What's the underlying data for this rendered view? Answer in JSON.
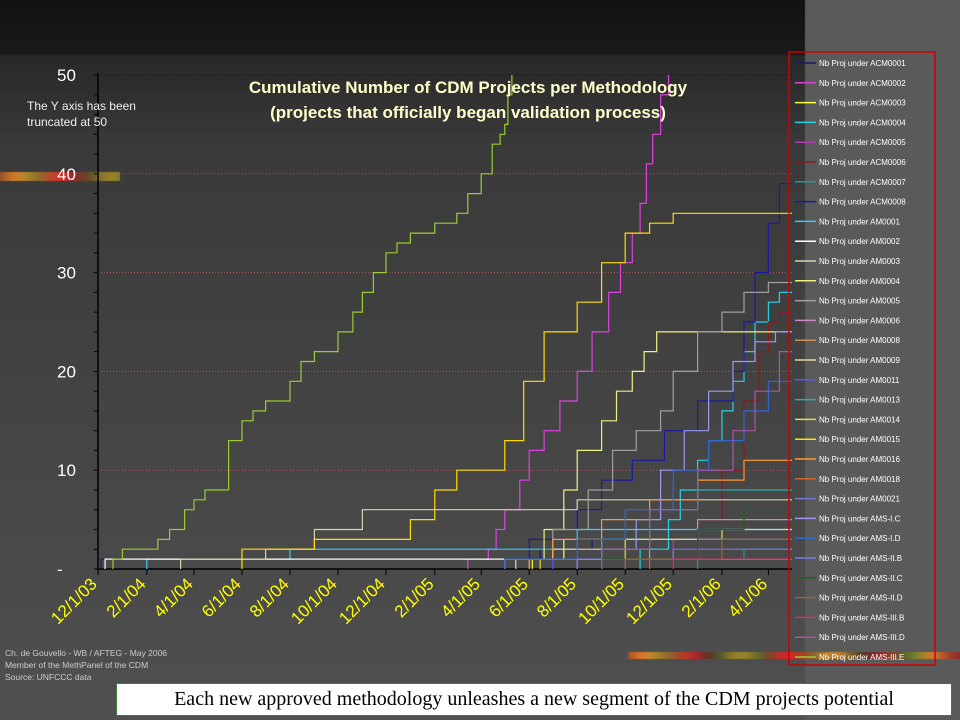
{
  "chart_data": {
    "type": "line",
    "title": "Cumulative Number of CDM Projects per Methodology",
    "subtitle": "(projects that officially began validation process)",
    "annotation": "The Y axis has been truncated at  50",
    "ylim": [
      0,
      50
    ],
    "y_ticks": [
      "-",
      "10",
      "20",
      "30",
      "40",
      "50"
    ],
    "x_ticks": [
      "12/1/03",
      "2/1/04",
      "4/1/04",
      "6/1/04",
      "8/1/04",
      "10/1/04",
      "12/1/04",
      "2/1/05",
      "4/1/05",
      "6/1/05",
      "8/1/05",
      "10/1/05",
      "12/1/05",
      "2/1/06",
      "4/1/06"
    ],
    "x_range": [
      "2003-12-01",
      "2006-05-01"
    ],
    "legend_position": "right",
    "series": [
      {
        "name": "Nb Proj under ACM0001",
        "color": "#1a1a6e",
        "steps": [
          [
            "2003-12-05",
            1
          ],
          [
            "2005-05-15",
            1
          ],
          [
            "2005-06-15",
            2
          ],
          [
            "2005-08-20",
            3
          ],
          [
            "2006-05-01",
            3
          ]
        ]
      },
      {
        "name": "Nb Proj under ACM0002",
        "color": "#e040e0",
        "steps": [
          [
            "2005-03-15",
            1
          ],
          [
            "2005-04-10",
            2
          ],
          [
            "2005-04-20",
            4
          ],
          [
            "2005-05-01",
            6
          ],
          [
            "2005-05-20",
            9
          ],
          [
            "2005-06-01",
            12
          ],
          [
            "2005-06-20",
            14
          ],
          [
            "2005-07-10",
            17
          ],
          [
            "2005-08-01",
            20
          ],
          [
            "2005-08-20",
            24
          ],
          [
            "2005-09-10",
            28
          ],
          [
            "2005-09-25",
            31
          ],
          [
            "2005-10-10",
            34
          ],
          [
            "2005-10-20",
            37
          ],
          [
            "2005-10-28",
            41
          ],
          [
            "2005-11-05",
            44
          ],
          [
            "2005-11-15",
            48
          ],
          [
            "2005-11-25",
            50
          ]
        ]
      },
      {
        "name": "Nb Proj under ACM0003",
        "color": "#ffff33",
        "steps": [
          [
            "2005-06-05",
            1
          ],
          [
            "2005-07-15",
            3
          ],
          [
            "2006-05-01",
            3
          ]
        ]
      },
      {
        "name": "Nb Proj under ACM0004",
        "color": "#22d3e6",
        "steps": [
          [
            "2005-10-20",
            2
          ],
          [
            "2005-11-25",
            5
          ],
          [
            "2005-12-10",
            8
          ],
          [
            "2006-01-01",
            11
          ],
          [
            "2006-01-15",
            13
          ],
          [
            "2006-02-01",
            16
          ],
          [
            "2006-02-15",
            19
          ],
          [
            "2006-03-01",
            22
          ],
          [
            "2006-03-15",
            25
          ],
          [
            "2006-04-01",
            27
          ],
          [
            "2006-04-15",
            28
          ],
          [
            "2006-05-01",
            28
          ]
        ]
      },
      {
        "name": "Nb Proj under ACM0005",
        "color": "#b23ab2",
        "steps": [
          [
            "2005-09-01",
            1
          ],
          [
            "2005-12-01",
            3
          ],
          [
            "2006-05-01",
            3
          ]
        ]
      },
      {
        "name": "Nb Proj under ACM0006",
        "color": "#8b1a1a",
        "steps": [
          [
            "2005-11-01",
            1
          ],
          [
            "2006-01-01",
            5
          ],
          [
            "2006-02-01",
            10
          ],
          [
            "2006-03-01",
            17
          ],
          [
            "2006-03-20",
            22
          ],
          [
            "2006-04-01",
            25
          ],
          [
            "2006-04-15",
            26
          ],
          [
            "2006-05-01",
            26
          ]
        ]
      },
      {
        "name": "Nb Proj under ACM0007",
        "color": "#1a9a9a",
        "steps": [
          [
            "2006-01-01",
            1
          ],
          [
            "2006-03-01",
            2
          ],
          [
            "2006-05-01",
            2
          ]
        ]
      },
      {
        "name": "Nb Proj under ACM0008",
        "color": "#1a1aa0",
        "steps": [
          [
            "2005-05-01",
            1
          ],
          [
            "2005-06-01",
            3
          ],
          [
            "2005-08-01",
            6
          ],
          [
            "2005-09-01",
            9
          ],
          [
            "2005-10-10",
            11
          ],
          [
            "2005-11-20",
            14
          ],
          [
            "2006-01-01",
            17
          ],
          [
            "2006-02-15",
            20
          ],
          [
            "2006-03-01",
            25
          ],
          [
            "2006-03-15",
            30
          ],
          [
            "2006-04-01",
            35
          ],
          [
            "2006-04-15",
            39
          ],
          [
            "2006-05-01",
            39
          ]
        ]
      },
      {
        "name": "Nb Proj under AM0001",
        "color": "#33ccff",
        "steps": [
          [
            "2004-02-01",
            1
          ],
          [
            "2004-08-01",
            2
          ],
          [
            "2005-08-01",
            4
          ],
          [
            "2006-05-01",
            4
          ]
        ]
      },
      {
        "name": "Nb Proj under AM0002",
        "color": "#ffffff",
        "steps": [
          [
            "2003-12-10",
            1
          ],
          [
            "2006-05-01",
            1
          ]
        ]
      },
      {
        "name": "Nb Proj under AM0003",
        "color": "#d4d4b0",
        "steps": [
          [
            "2004-03-15",
            1
          ],
          [
            "2004-07-01",
            2
          ],
          [
            "2004-09-01",
            4
          ],
          [
            "2004-11-01",
            6
          ],
          [
            "2005-05-01",
            6
          ],
          [
            "2005-08-01",
            7
          ],
          [
            "2006-05-01",
            7
          ]
        ]
      },
      {
        "name": "Nb Proj under AM0004",
        "color": "#f0f080",
        "steps": [
          [
            "2005-05-01",
            1
          ],
          [
            "2005-06-20",
            4
          ],
          [
            "2005-07-15",
            8
          ],
          [
            "2005-08-01",
            12
          ],
          [
            "2005-09-01",
            15
          ],
          [
            "2005-09-20",
            18
          ],
          [
            "2005-10-10",
            20
          ],
          [
            "2005-10-25",
            22
          ],
          [
            "2005-11-10",
            24
          ],
          [
            "2006-05-01",
            24
          ]
        ]
      },
      {
        "name": "Nb Proj under AM0005",
        "color": "#a0a0a0",
        "steps": [
          [
            "2005-05-01",
            1
          ],
          [
            "2005-07-01",
            4
          ],
          [
            "2005-08-15",
            8
          ],
          [
            "2005-09-15",
            12
          ],
          [
            "2005-10-15",
            14
          ],
          [
            "2005-11-15",
            16
          ],
          [
            "2005-12-01",
            20
          ],
          [
            "2006-01-01",
            24
          ],
          [
            "2006-02-01",
            26
          ],
          [
            "2006-03-01",
            28
          ],
          [
            "2006-04-01",
            29
          ],
          [
            "2006-05-01",
            29
          ]
        ]
      },
      {
        "name": "Nb Proj under AM0006",
        "color": "#cc88cc",
        "steps": [
          [
            "2005-08-01",
            1
          ],
          [
            "2005-11-01",
            3
          ],
          [
            "2006-01-01",
            5
          ],
          [
            "2006-05-01",
            5
          ]
        ]
      },
      {
        "name": "Nb Proj under AM0008",
        "color": "#c89050",
        "steps": [
          [
            "2005-10-01",
            1
          ],
          [
            "2006-05-01",
            1
          ]
        ]
      },
      {
        "name": "Nb Proj under AM0009",
        "color": "#e8d8a0",
        "steps": [
          [
            "2005-05-15",
            1
          ],
          [
            "2005-07-01",
            2
          ],
          [
            "2005-09-01",
            3
          ],
          [
            "2006-05-01",
            3
          ]
        ]
      },
      {
        "name": "Nb Proj under AM0011",
        "color": "#5555ff",
        "steps": [
          [
            "2005-07-01",
            1
          ],
          [
            "2005-09-01",
            3
          ],
          [
            "2006-02-01",
            4
          ],
          [
            "2006-05-01",
            4
          ]
        ]
      },
      {
        "name": "Nb Proj under AM0013",
        "color": "#2ab0b0",
        "steps": [
          [
            "2005-06-01",
            1
          ],
          [
            "2005-09-01",
            3
          ],
          [
            "2005-11-01",
            6
          ],
          [
            "2006-01-01",
            8
          ],
          [
            "2006-05-01",
            8
          ]
        ]
      },
      {
        "name": "Nb Proj under AM0014",
        "color": "#dddd44",
        "steps": [
          [
            "2005-06-15",
            1
          ],
          [
            "2005-10-01",
            3
          ],
          [
            "2006-02-01",
            4
          ],
          [
            "2006-05-01",
            4
          ]
        ]
      },
      {
        "name": "Nb Proj under AM0015",
        "color": "#ffdd00",
        "steps": [
          [
            "2004-06-01",
            2
          ],
          [
            "2004-09-01",
            3
          ],
          [
            "2005-01-01",
            5
          ],
          [
            "2005-02-01",
            8
          ],
          [
            "2005-03-01",
            10
          ],
          [
            "2005-05-01",
            13
          ],
          [
            "2005-05-25",
            19
          ],
          [
            "2005-06-20",
            24
          ],
          [
            "2005-08-01",
            27
          ],
          [
            "2005-09-01",
            31
          ],
          [
            "2005-10-01",
            34
          ],
          [
            "2005-11-01",
            35
          ],
          [
            "2005-12-01",
            36
          ],
          [
            "2006-05-01",
            36
          ]
        ]
      },
      {
        "name": "Nb Proj under AM0016",
        "color": "#ff9933",
        "steps": [
          [
            "2005-06-01",
            1
          ],
          [
            "2005-07-01",
            3
          ],
          [
            "2005-09-01",
            5
          ],
          [
            "2005-11-01",
            7
          ],
          [
            "2006-01-01",
            9
          ],
          [
            "2006-03-01",
            11
          ],
          [
            "2006-05-01",
            11
          ]
        ]
      },
      {
        "name": "Nb Proj under AM0018",
        "color": "#cc6633",
        "steps": [
          [
            "2005-11-01",
            1
          ],
          [
            "2006-01-01",
            3
          ],
          [
            "2006-05-01",
            3
          ]
        ]
      },
      {
        "name": "Nb Proj under AM0021",
        "color": "#7777dd",
        "steps": [
          [
            "2005-10-01",
            1
          ],
          [
            "2005-12-01",
            2
          ],
          [
            "2006-05-01",
            2
          ]
        ]
      },
      {
        "name": "Nb Proj under AMS-I.C",
        "color": "#9999ee",
        "steps": [
          [
            "2005-09-01",
            2
          ],
          [
            "2005-10-15",
            5
          ],
          [
            "2005-11-15",
            10
          ],
          [
            "2005-12-15",
            14
          ],
          [
            "2006-01-15",
            18
          ],
          [
            "2006-02-15",
            21
          ],
          [
            "2006-03-15",
            23
          ],
          [
            "2006-04-10",
            24
          ],
          [
            "2006-05-01",
            24
          ]
        ]
      },
      {
        "name": "Nb Proj under AMS-I.D",
        "color": "#3366cc",
        "steps": [
          [
            "2005-05-01",
            1
          ],
          [
            "2005-08-01",
            3
          ],
          [
            "2005-10-01",
            6
          ],
          [
            "2005-12-01",
            10
          ],
          [
            "2006-01-15",
            13
          ],
          [
            "2006-03-01",
            16
          ],
          [
            "2006-04-01",
            19
          ],
          [
            "2006-05-01",
            19
          ]
        ]
      },
      {
        "name": "Nb Proj under AMS-II.B",
        "color": "#7a7aee",
        "steps": [
          [
            "2005-08-01",
            1
          ],
          [
            "2006-01-01",
            3
          ],
          [
            "2006-05-01",
            3
          ]
        ]
      },
      {
        "name": "Nb Proj under AMS-II.C",
        "color": "#1f5f1f",
        "steps": [
          [
            "2005-09-01",
            1
          ],
          [
            "2006-01-01",
            4
          ],
          [
            "2006-03-01",
            6
          ],
          [
            "2006-05-01",
            6
          ]
        ]
      },
      {
        "name": "Nb Proj under AMS-II.D",
        "color": "#8b6a3a",
        "steps": [
          [
            "2005-10-01",
            1
          ],
          [
            "2006-02-01",
            3
          ],
          [
            "2006-05-01",
            3
          ]
        ]
      },
      {
        "name": "Nb Proj under AMS-III.B",
        "color": "#cc3366",
        "steps": [
          [
            "2005-12-01",
            1
          ],
          [
            "2006-05-01",
            1
          ]
        ]
      },
      {
        "name": "Nb Proj under AMS-III.D",
        "color": "#aa55aa",
        "steps": [
          [
            "2005-09-01",
            2
          ],
          [
            "2005-11-01",
            6
          ],
          [
            "2006-01-01",
            10
          ],
          [
            "2006-02-15",
            14
          ],
          [
            "2006-03-15",
            18
          ],
          [
            "2006-04-15",
            22
          ],
          [
            "2006-05-01",
            22
          ]
        ]
      },
      {
        "name": "Nb Proj under AMS-III.E",
        "color": "#99cc33",
        "steps": [
          [
            "2003-12-20",
            1
          ],
          [
            "2004-01-01",
            2
          ],
          [
            "2004-02-15",
            3
          ],
          [
            "2004-03-01",
            4
          ],
          [
            "2004-03-20",
            6
          ],
          [
            "2004-04-01",
            7
          ],
          [
            "2004-04-15",
            8
          ],
          [
            "2004-05-15",
            13
          ],
          [
            "2004-06-01",
            15
          ],
          [
            "2004-06-15",
            16
          ],
          [
            "2004-07-01",
            17
          ],
          [
            "2004-08-01",
            19
          ],
          [
            "2004-08-15",
            21
          ],
          [
            "2004-09-01",
            22
          ],
          [
            "2004-10-01",
            24
          ],
          [
            "2004-10-20",
            26
          ],
          [
            "2004-11-01",
            28
          ],
          [
            "2004-11-15",
            30
          ],
          [
            "2004-12-01",
            32
          ],
          [
            "2004-12-15",
            33
          ],
          [
            "2005-01-01",
            34
          ],
          [
            "2005-02-01",
            35
          ],
          [
            "2005-03-01",
            36
          ],
          [
            "2005-03-15",
            38
          ],
          [
            "2005-04-01",
            40
          ],
          [
            "2005-04-15",
            43
          ],
          [
            "2005-04-25",
            44
          ],
          [
            "2005-05-01",
            45
          ],
          [
            "2005-05-05",
            48
          ],
          [
            "2005-05-10",
            50
          ]
        ]
      }
    ]
  },
  "credits": {
    "line1": "Ch. de Gouvello - WB / AFTEG - May 2006",
    "line2": "Member of the MethPanel of the CDM",
    "line3": "Source: UNFCCC data"
  },
  "caption": "Each new approved methodology unleashes a new segment of the CDM projects potential",
  "colors": {
    "background": "#4a4a4a",
    "title": "#ffffcc",
    "x_tick_labels": "#ffff00",
    "gridline": "#c05050",
    "legend_border": "#cc0000"
  }
}
